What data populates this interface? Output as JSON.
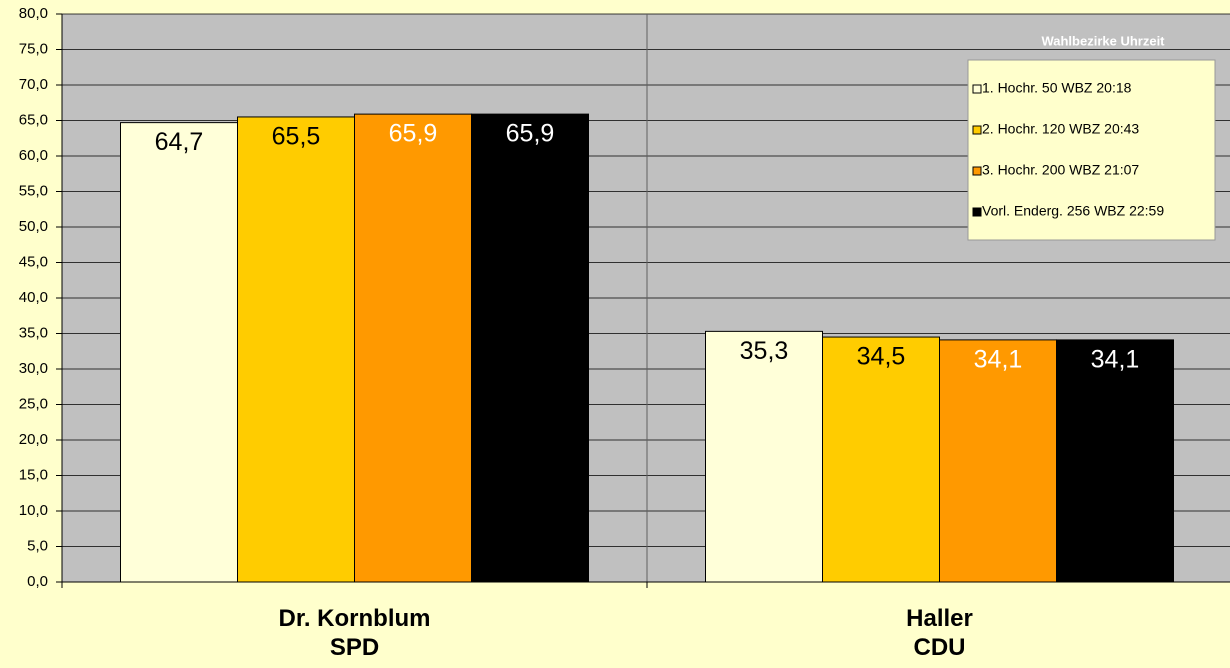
{
  "chart_data": {
    "type": "bar",
    "categories": [
      "Dr. Kornblum\nSPD",
      "Haller\nCDU"
    ],
    "legend_title": "Wahlbezirke Uhrzeit",
    "series": [
      {
        "name": "1. Hochr. 50 WBZ 20:18",
        "color": "#ffffd9",
        "label_color": "#000000",
        "values": [
          64.7,
          35.3
        ],
        "value_labels": [
          "64,7",
          "35,3"
        ]
      },
      {
        "name": "2. Hochr. 120 WBZ 20:43",
        "color": "#ffcc00",
        "label_color": "#000000",
        "values": [
          65.5,
          34.5
        ],
        "value_labels": [
          "65,5",
          "34,5"
        ]
      },
      {
        "name": "3. Hochr. 200 WBZ 21:07",
        "color": "#ff9900",
        "label_color": "#ffffff",
        "values": [
          65.9,
          34.1
        ],
        "value_labels": [
          "65,9",
          "34,1"
        ]
      },
      {
        "name": "Vorl. Enderg. 256 WBZ 22:59",
        "color": "#000000",
        "label_color": "#ffffff",
        "values": [
          65.9,
          34.1
        ],
        "value_labels": [
          "65,9",
          "34,1"
        ]
      }
    ],
    "ylim": [
      0,
      80
    ],
    "yticks": [
      {
        "value": 0,
        "label": "0,0"
      },
      {
        "value": 5,
        "label": "5,0"
      },
      {
        "value": 10,
        "label": "10,0"
      },
      {
        "value": 15,
        "label": "15,0"
      },
      {
        "value": 20,
        "label": "20,0"
      },
      {
        "value": 25,
        "label": "25,0"
      },
      {
        "value": 30,
        "label": "30,0"
      },
      {
        "value": 35,
        "label": "35,0"
      },
      {
        "value": 40,
        "label": "40,0"
      },
      {
        "value": 45,
        "label": "45,0"
      },
      {
        "value": 50,
        "label": "50,0"
      },
      {
        "value": 55,
        "label": "55,0"
      },
      {
        "value": 60,
        "label": "60,0"
      },
      {
        "value": 65,
        "label": "65,0"
      },
      {
        "value": 70,
        "label": "70,0"
      },
      {
        "value": 75,
        "label": "75,0"
      },
      {
        "value": 80,
        "label": "80,0"
      }
    ],
    "grid": true
  }
}
